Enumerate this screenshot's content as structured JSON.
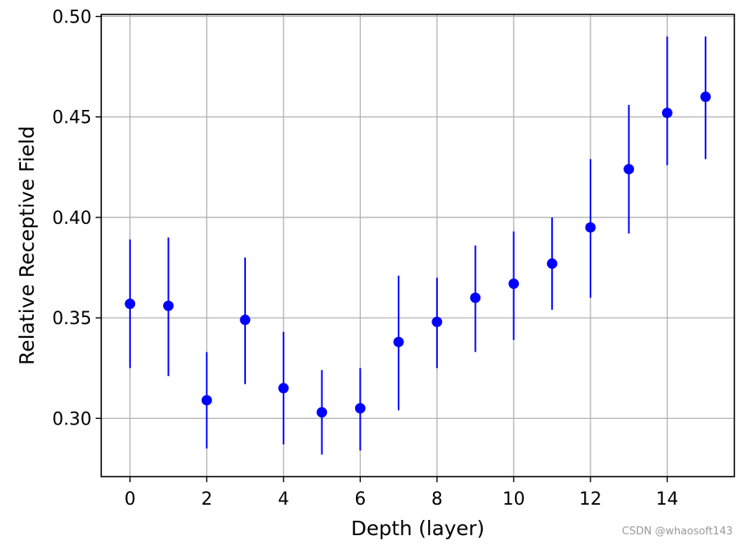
{
  "chart_data": {
    "type": "scatter",
    "xlabel": "Depth (layer)",
    "ylabel": "Relative Receptive Field",
    "xlim": [
      -0.75,
      15.75
    ],
    "ylim": [
      0.271,
      0.501
    ],
    "xticks": [
      0,
      2,
      4,
      6,
      8,
      10,
      12,
      14
    ],
    "yticks": [
      0.3,
      0.35,
      0.4,
      0.45,
      0.5
    ],
    "xtick_labels": [
      "0",
      "2",
      "4",
      "6",
      "8",
      "10",
      "12",
      "14"
    ],
    "ytick_labels": [
      "0.30",
      "0.35",
      "0.40",
      "0.45",
      "0.50"
    ],
    "grid": true,
    "color": "#0000ff",
    "points": [
      {
        "x": 0,
        "y": 0.357,
        "err_low": 0.325,
        "err_high": 0.389
      },
      {
        "x": 1,
        "y": 0.356,
        "err_low": 0.321,
        "err_high": 0.39
      },
      {
        "x": 2,
        "y": 0.309,
        "err_low": 0.285,
        "err_high": 0.333
      },
      {
        "x": 3,
        "y": 0.349,
        "err_low": 0.317,
        "err_high": 0.38
      },
      {
        "x": 4,
        "y": 0.315,
        "err_low": 0.287,
        "err_high": 0.343
      },
      {
        "x": 5,
        "y": 0.303,
        "err_low": 0.282,
        "err_high": 0.324
      },
      {
        "x": 6,
        "y": 0.305,
        "err_low": 0.284,
        "err_high": 0.325
      },
      {
        "x": 7,
        "y": 0.338,
        "err_low": 0.304,
        "err_high": 0.371
      },
      {
        "x": 8,
        "y": 0.348,
        "err_low": 0.325,
        "err_high": 0.37
      },
      {
        "x": 9,
        "y": 0.36,
        "err_low": 0.333,
        "err_high": 0.386
      },
      {
        "x": 10,
        "y": 0.367,
        "err_low": 0.339,
        "err_high": 0.393
      },
      {
        "x": 11,
        "y": 0.377,
        "err_low": 0.354,
        "err_high": 0.4
      },
      {
        "x": 12,
        "y": 0.395,
        "err_low": 0.36,
        "err_high": 0.429
      },
      {
        "x": 13,
        "y": 0.424,
        "err_low": 0.392,
        "err_high": 0.456
      },
      {
        "x": 14,
        "y": 0.452,
        "err_low": 0.426,
        "err_high": 0.49
      },
      {
        "x": 15,
        "y": 0.46,
        "err_low": 0.429,
        "err_high": 0.49
      }
    ]
  },
  "watermark": "CSDN @whaosoft143"
}
